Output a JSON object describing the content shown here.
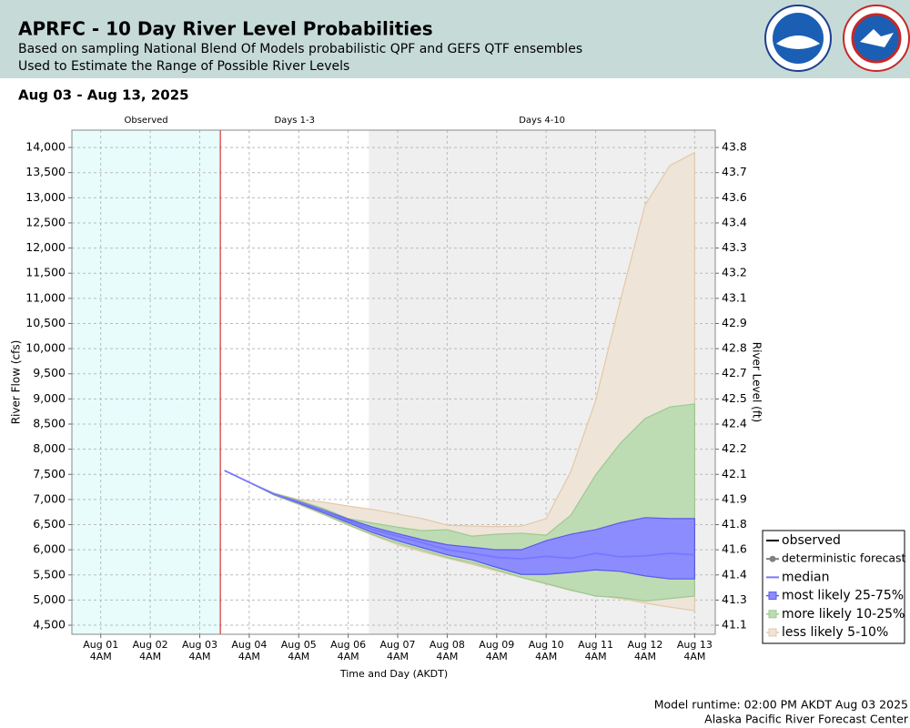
{
  "chart_data": {
    "type": "fan",
    "title": "APRFC - 10 Day River Level Probabilities",
    "subtitle": [
      "Based on sampling National Blend Of Models probabilistic QPF and GEFS QTF ensembles",
      "Used to Estimate the Range of Possible River Levels"
    ],
    "date_range": "Aug 03 - Aug 13, 2025",
    "ylabel": "River Flow (cfs)",
    "y2label": "River Level (ft)",
    "xlabel": "Time and Day (AKDT)",
    "footer": [
      "Model runtime: 02:00 PM AKDT Aug 03 2025",
      "Alaska Pacific River Forecast Center"
    ],
    "regions": [
      {
        "label": "Observed",
        "end": "2025-08-03T14:00",
        "color": "#e8fcfc"
      },
      {
        "label": "Days 1-3",
        "end": "2025-08-06T14:00",
        "color": "#ffffff"
      },
      {
        "label": "Days 4-10",
        "end": "2025-08-13T14:00",
        "color": "#efefef"
      }
    ],
    "forecast_start_color": "#e03030",
    "xlim": [
      "2025-07-31T14:00",
      "2025-08-13T14:00"
    ],
    "xticks": [
      {
        "value": "2025-08-01T04:00",
        "label": [
          "Aug 01",
          "4AM"
        ]
      },
      {
        "value": "2025-08-02T04:00",
        "label": [
          "Aug 02",
          "4AM"
        ]
      },
      {
        "value": "2025-08-03T04:00",
        "label": [
          "Aug 03",
          "4AM"
        ]
      },
      {
        "value": "2025-08-04T04:00",
        "label": [
          "Aug 04",
          "4AM"
        ]
      },
      {
        "value": "2025-08-05T04:00",
        "label": [
          "Aug 05",
          "4AM"
        ]
      },
      {
        "value": "2025-08-06T04:00",
        "label": [
          "Aug 06",
          "4AM"
        ]
      },
      {
        "value": "2025-08-07T04:00",
        "label": [
          "Aug 07",
          "4AM"
        ]
      },
      {
        "value": "2025-08-08T04:00",
        "label": [
          "Aug 08",
          "4AM"
        ]
      },
      {
        "value": "2025-08-09T04:00",
        "label": [
          "Aug 09",
          "4AM"
        ]
      },
      {
        "value": "2025-08-10T04:00",
        "label": [
          "Aug 10",
          "4AM"
        ]
      },
      {
        "value": "2025-08-11T04:00",
        "label": [
          "Aug 11",
          "4AM"
        ]
      },
      {
        "value": "2025-08-12T04:00",
        "label": [
          "Aug 12",
          "4AM"
        ]
      },
      {
        "value": "2025-08-13T04:00",
        "label": [
          "Aug 13",
          "4AM"
        ]
      }
    ],
    "ylim": [
      4320,
      14345
    ],
    "yticks": [
      {
        "value": 14000,
        "label": "14,000"
      },
      {
        "value": 13500,
        "label": "13,500"
      },
      {
        "value": 13000,
        "label": "13,000"
      },
      {
        "value": 12500,
        "label": "12,500"
      },
      {
        "value": 12000,
        "label": "12,000"
      },
      {
        "value": 11500,
        "label": "11,500"
      },
      {
        "value": 11000,
        "label": "11,000"
      },
      {
        "value": 10500,
        "label": "10,500"
      },
      {
        "value": 10000,
        "label": "10,000"
      },
      {
        "value": 9500,
        "label": "9,500"
      },
      {
        "value": 9000,
        "label": "9,000"
      },
      {
        "value": 8500,
        "label": "8,500"
      },
      {
        "value": 8000,
        "label": "8,000"
      },
      {
        "value": 7500,
        "label": "7,500"
      },
      {
        "value": 7000,
        "label": "7,000"
      },
      {
        "value": 6500,
        "label": "6,500"
      },
      {
        "value": 6000,
        "label": "6,000"
      },
      {
        "value": 5500,
        "label": "5,500"
      },
      {
        "value": 5000,
        "label": "5,000"
      },
      {
        "value": 4500,
        "label": "4,500"
      }
    ],
    "y2ticks": [
      43.8,
      43.7,
      43.6,
      43.4,
      43.3,
      43.2,
      43.1,
      42.9,
      42.8,
      42.7,
      42.5,
      42.4,
      42.2,
      42.1,
      41.9,
      41.8,
      41.6,
      41.4,
      41.3,
      41.1
    ],
    "grid": true,
    "legend": "lower right",
    "x": [
      "2025-08-03T16:00",
      "2025-08-04T04:00",
      "2025-08-04T16:00",
      "2025-08-05T04:00",
      "2025-08-05T16:00",
      "2025-08-06T04:00",
      "2025-08-06T16:00",
      "2025-08-07T04:00",
      "2025-08-07T16:00",
      "2025-08-08T04:00",
      "2025-08-08T16:00",
      "2025-08-09T04:00",
      "2025-08-09T16:00",
      "2025-08-10T04:00",
      "2025-08-10T16:00",
      "2025-08-11T04:00",
      "2025-08-11T16:00",
      "2025-08-12T04:00",
      "2025-08-12T16:00",
      "2025-08-13T04:00"
    ],
    "series": [
      {
        "name": "observed",
        "color": "#000000"
      },
      {
        "name": "deterministic forecast",
        "color": "#808080"
      },
      {
        "name": "median",
        "color": "#7878ff",
        "values": [
          7577,
          7340,
          7110,
          6950,
          6780,
          6580,
          6400,
          6270,
          6140,
          6000,
          5930,
          5850,
          5820,
          5870,
          5830,
          5930,
          5860,
          5880,
          5930,
          5900
        ]
      },
      {
        "name": "most likely 25-75%",
        "color": "#8c8cff",
        "edge": "#5a5ae8",
        "lower": [
          7577,
          7340,
          7100,
          6930,
          6740,
          6540,
          6340,
          6180,
          6040,
          5900,
          5800,
          5650,
          5510,
          5510,
          5550,
          5600,
          5570,
          5480,
          5420,
          5420
        ],
        "upper": [
          7577,
          7340,
          7110,
          6960,
          6790,
          6610,
          6450,
          6320,
          6200,
          6100,
          6050,
          6000,
          6000,
          6180,
          6310,
          6400,
          6540,
          6640,
          6620,
          6620
        ]
      },
      {
        "name": "more likely 10-25%",
        "color": "#bddcb3",
        "edge": "#9cc98f",
        "lower": [
          7577,
          7340,
          7090,
          6910,
          6710,
          6500,
          6300,
          6130,
          5990,
          5850,
          5740,
          5600,
          5450,
          5330,
          5200,
          5080,
          5050,
          4980,
          5030,
          5080
        ],
        "upper": [
          7577,
          7340,
          7125,
          6980,
          6820,
          6620,
          6530,
          6450,
          6380,
          6400,
          6270,
          6310,
          6330,
          6290,
          6690,
          7490,
          8120,
          8610,
          8840,
          8900
        ]
      },
      {
        "name": "less likely 5-10%",
        "color": "#efe4d8",
        "edge": "#e2c9a8",
        "lower": [
          7577,
          7340,
          7090,
          6900,
          6700,
          6490,
          6290,
          6100,
          5960,
          5830,
          5710,
          5580,
          5450,
          5320,
          5190,
          5090,
          5030,
          4940,
          4860,
          4790
        ],
        "upper": [
          7577,
          7340,
          7125,
          7000,
          6950,
          6870,
          6800,
          6710,
          6620,
          6490,
          6470,
          6460,
          6470,
          6620,
          7560,
          8970,
          10960,
          12860,
          13640,
          13900
        ]
      }
    ]
  }
}
